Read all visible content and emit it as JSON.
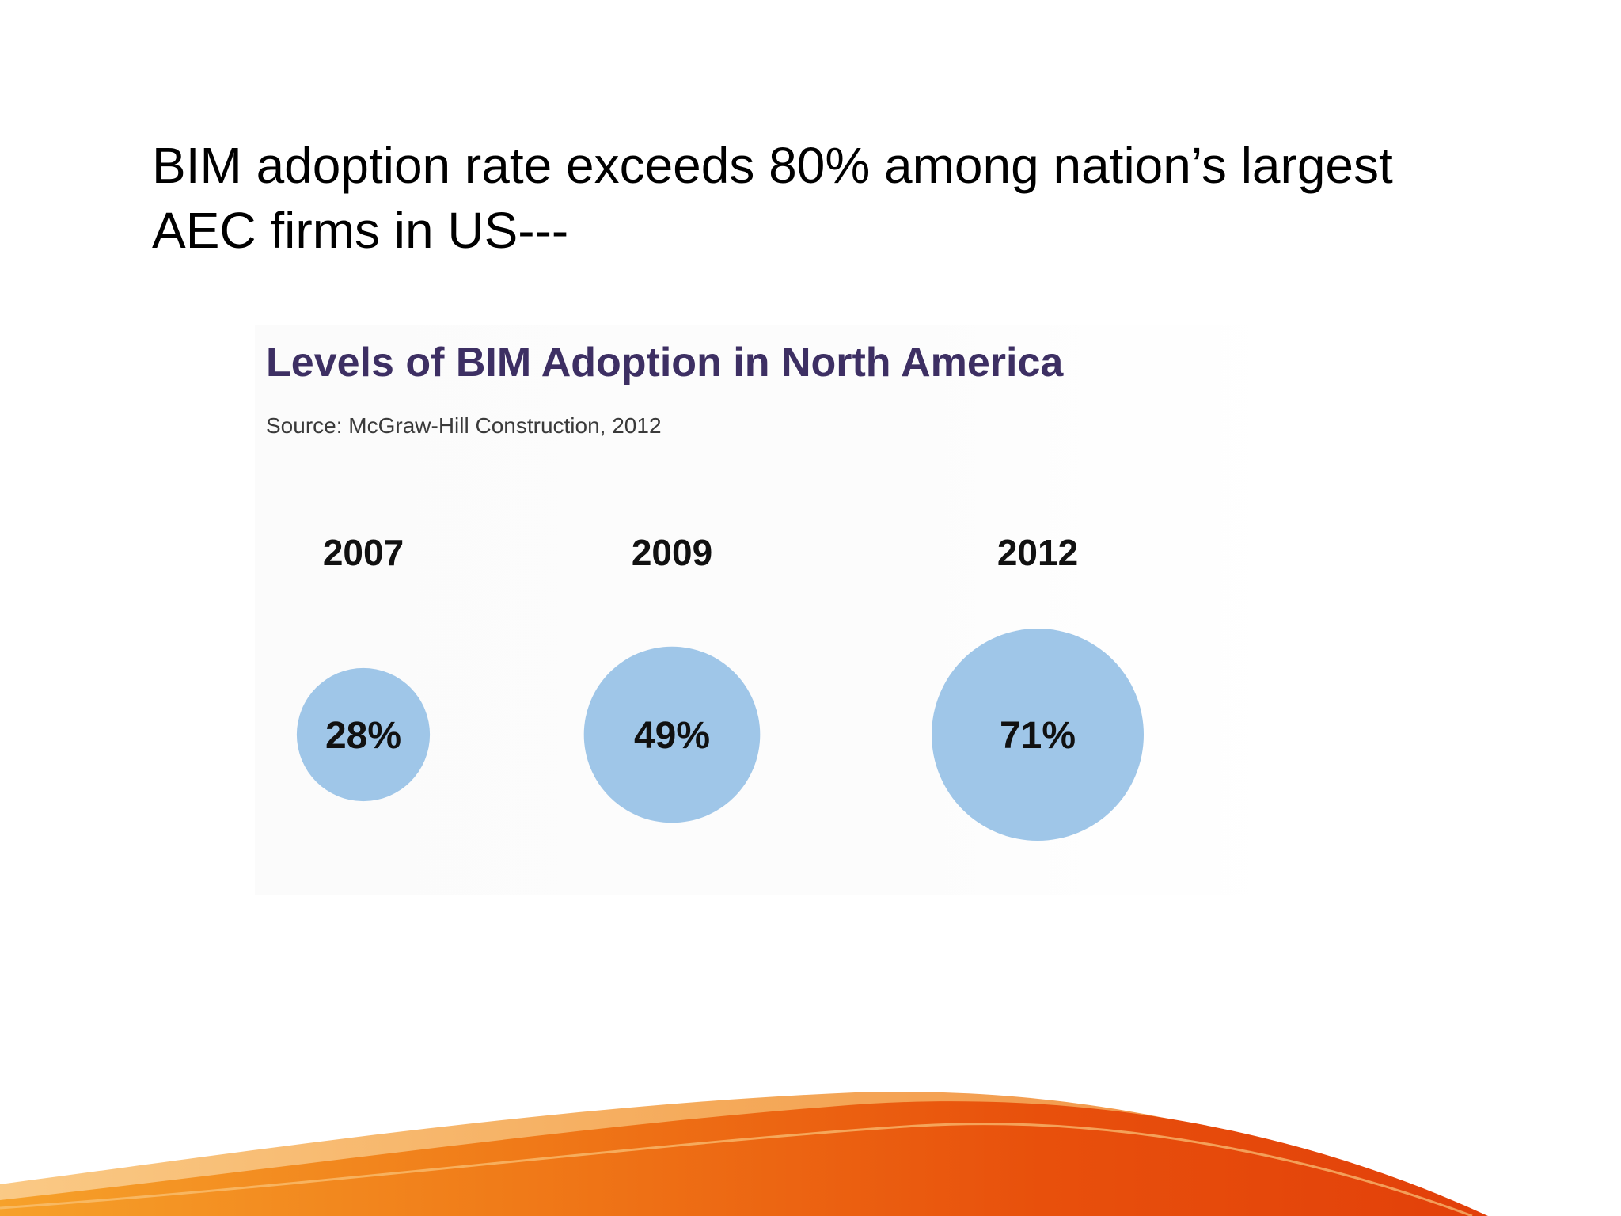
{
  "slide": {
    "title_line1": "BIM adoption rate exceeds 80% among nation’s largest",
    "title_line2": "AEC firms in US---"
  },
  "chart_data": {
    "type": "bubble",
    "title": "Levels of BIM Adoption in North America",
    "source": "Source: McGraw-Hill Construction, 2012",
    "categories": [
      "2007",
      "2009",
      "2012"
    ],
    "values": [
      28,
      49,
      71
    ],
    "value_labels": [
      "28%",
      "49%",
      "71%"
    ],
    "unit": "%",
    "xlabel": "",
    "ylabel": "",
    "legend": "none",
    "grid": false
  },
  "colors": {
    "bubble": "#9fc6e8",
    "title": "#3d2f63",
    "wave_dark": "#e8410a",
    "wave_light": "#f6a12a"
  }
}
